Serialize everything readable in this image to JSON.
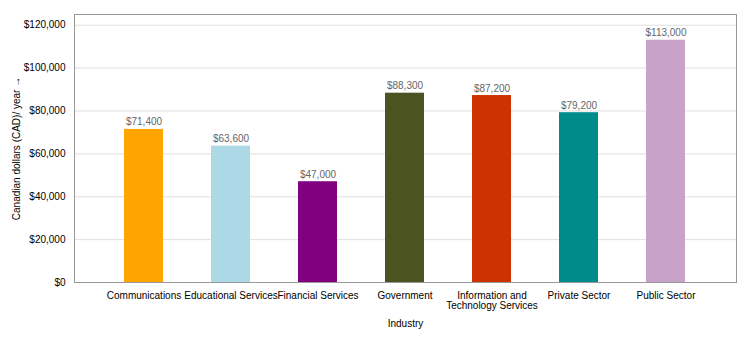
{
  "chart_data": {
    "type": "bar",
    "categories": [
      "Communications",
      "Educational Services",
      "Financial Services",
      "Government",
      "Information and\nTechnology Services",
      "Private Sector",
      "Public Sector"
    ],
    "values": [
      71400,
      63600,
      47000,
      88300,
      87200,
      79200,
      113000
    ],
    "value_labels": [
      "$71,400",
      "$63,600",
      "$47,000",
      "$88,300",
      "$87,200",
      "$79,200",
      "$113,000"
    ],
    "data_labels": true,
    "colors": [
      "#FFA500",
      "#ADD8E6",
      "#800080",
      "#4B5320",
      "#CC3300",
      "#008B8B",
      "#C8A2C8"
    ],
    "xlabel": "Industry",
    "ylabel": "Canadian dollars (CAD)/ year",
    "ylim": [
      0,
      125000
    ],
    "yticks": [
      {
        "value": 0,
        "label": "$0"
      },
      {
        "value": 20000,
        "label": "$20,000"
      },
      {
        "value": 40000,
        "label": "$40,000"
      },
      {
        "value": 60000,
        "label": "$60,000"
      },
      {
        "value": 80000,
        "label": "$80,000"
      },
      {
        "value": 100000,
        "label": "$100,000"
      },
      {
        "value": 120000,
        "label": "$120,000"
      }
    ],
    "grid": true
  }
}
